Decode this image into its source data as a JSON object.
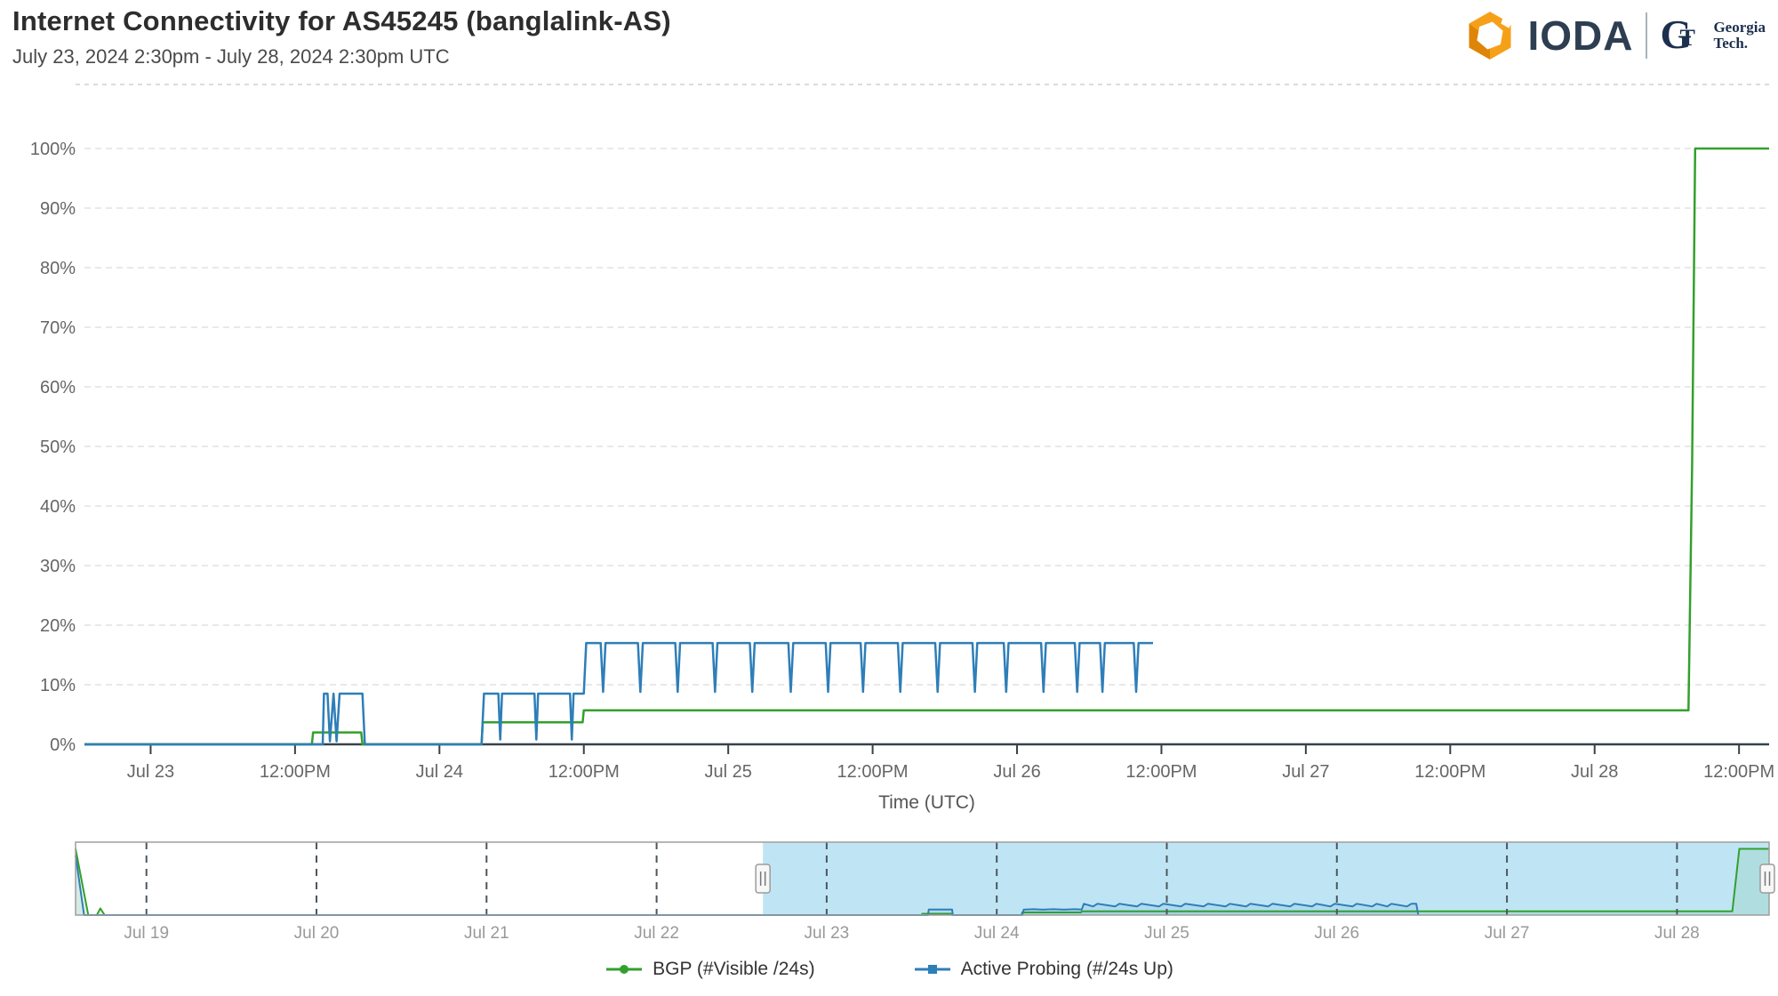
{
  "header": {
    "title": "Internet Connectivity for AS45245 (banglalink-AS)",
    "subtitle": "July 23, 2024 2:30pm - July 28, 2024 2:30pm UTC",
    "brand": {
      "ioda": "IODA",
      "gt_g": "G",
      "gt_t": "T",
      "gt_line1": "Georgia",
      "gt_line2": "Tech."
    }
  },
  "legend": [
    {
      "label": "BGP (#Visible /24s)",
      "color": "#33a02c",
      "marker": "circle"
    },
    {
      "label": "Active Probing (#/24s Up)",
      "color": "#2e7eb8",
      "marker": "square"
    }
  ],
  "colors": {
    "bgp_green": "#33a02c",
    "probing_blue": "#2e7eb8",
    "axis_line": "#37424a",
    "grid_line": "#e2e2e2",
    "tick_label": "#666666",
    "nav_label": "#999999",
    "nav_mask": "#bfe5f4",
    "nav_border": "#9e9e9e",
    "nav_grid": "#4d565e",
    "ioda_orange": "#f6a01a",
    "ioda_orange_dark": "#de8508"
  },
  "chart_data": {
    "type": "line",
    "title": "Internet Connectivity for AS45245 (banglalink-AS)",
    "time_axis_label": "Time (UTC)",
    "time_origin": "hours since Jul 18 2024 00:00 UTC",
    "x_range": [
      114.5,
      254.5
    ],
    "y_axis": {
      "min": 0,
      "max": 100,
      "tick_step": 10,
      "tick_labels": [
        "0%",
        "10%",
        "20%",
        "30%",
        "40%",
        "50%",
        "60%",
        "70%",
        "80%",
        "90%",
        "100%"
      ]
    },
    "x_ticks": [
      {
        "t": 120,
        "label": "Jul 23"
      },
      {
        "t": 132,
        "label": "12:00PM"
      },
      {
        "t": 144,
        "label": "Jul 24"
      },
      {
        "t": 156,
        "label": "12:00PM"
      },
      {
        "t": 168,
        "label": "Jul 25"
      },
      {
        "t": 180,
        "label": "12:00PM"
      },
      {
        "t": 192,
        "label": "Jul 26"
      },
      {
        "t": 204,
        "label": "12:00PM"
      },
      {
        "t": 216,
        "label": "Jul 27"
      },
      {
        "t": 228,
        "label": "12:00PM"
      },
      {
        "t": 240,
        "label": "Jul 28"
      },
      {
        "t": 252,
        "label": "12:00PM"
      }
    ],
    "series": [
      {
        "name": "BGP (#Visible /24s)",
        "color": "#33a02c",
        "points": [
          [
            114.5,
            0
          ],
          [
            133.4,
            0
          ],
          [
            133.5,
            2
          ],
          [
            137.5,
            2
          ],
          [
            137.6,
            0
          ],
          [
            147.5,
            0
          ],
          [
            147.6,
            3.7
          ],
          [
            155.9,
            3.7
          ],
          [
            156.0,
            5.7
          ],
          [
            247.8,
            5.7
          ],
          [
            248.1,
            47
          ],
          [
            248.35,
            100
          ],
          [
            254.5,
            100
          ]
        ]
      },
      {
        "name": "Active Probing (#/24s Up)",
        "color": "#2e7eb8",
        "points": [
          [
            114.5,
            0
          ],
          [
            134.3,
            0
          ],
          [
            134.4,
            8.5
          ],
          [
            134.7,
            8.5
          ],
          [
            134.9,
            0.5
          ],
          [
            135.2,
            8.5
          ],
          [
            135.45,
            0.5
          ],
          [
            135.7,
            8.5
          ],
          [
            137.6,
            8.5
          ],
          [
            137.8,
            0
          ],
          [
            147.5,
            0
          ],
          [
            147.7,
            8.5
          ],
          [
            148.9,
            8.5
          ],
          [
            149.05,
            0.8
          ],
          [
            149.2,
            8.5
          ],
          [
            151.9,
            8.5
          ],
          [
            152.05,
            0.8
          ],
          [
            152.2,
            8.5
          ],
          [
            154.85,
            8.5
          ],
          [
            155.0,
            0.8
          ],
          [
            155.15,
            8.5
          ],
          [
            156.0,
            8.5
          ],
          [
            156.2,
            17
          ],
          [
            157.4,
            17
          ],
          [
            157.6,
            8.8
          ],
          [
            157.8,
            17
          ],
          [
            160.5,
            17
          ],
          [
            160.7,
            8.8
          ],
          [
            160.9,
            17
          ],
          [
            163.6,
            17
          ],
          [
            163.8,
            8.8
          ],
          [
            164.0,
            17
          ],
          [
            166.7,
            17
          ],
          [
            166.9,
            8.8
          ],
          [
            167.1,
            17
          ],
          [
            169.8,
            17
          ],
          [
            170.0,
            8.8
          ],
          [
            170.2,
            17
          ],
          [
            173.0,
            17
          ],
          [
            173.2,
            8.8
          ],
          [
            173.4,
            17
          ],
          [
            176.1,
            17
          ],
          [
            176.3,
            8.8
          ],
          [
            176.5,
            17
          ],
          [
            179.0,
            17
          ],
          [
            179.2,
            8.8
          ],
          [
            179.4,
            17
          ],
          [
            182.1,
            17
          ],
          [
            182.3,
            8.8
          ],
          [
            182.5,
            17
          ],
          [
            185.2,
            17
          ],
          [
            185.4,
            8.8
          ],
          [
            185.6,
            17
          ],
          [
            188.3,
            17
          ],
          [
            188.5,
            8.8
          ],
          [
            188.7,
            17
          ],
          [
            190.9,
            17
          ],
          [
            191.1,
            8.8
          ],
          [
            191.3,
            17
          ],
          [
            194.0,
            17
          ],
          [
            194.2,
            8.8
          ],
          [
            194.4,
            17
          ],
          [
            196.8,
            17
          ],
          [
            197.0,
            8.8
          ],
          [
            197.2,
            17
          ],
          [
            198.9,
            17
          ],
          [
            199.1,
            8.8
          ],
          [
            199.3,
            17
          ],
          [
            201.7,
            17
          ],
          [
            201.9,
            8.8
          ],
          [
            202.1,
            17
          ],
          [
            203.3,
            17
          ]
        ]
      }
    ],
    "navigator": {
      "x_range": [
        14,
        253
      ],
      "y_max": 110,
      "selection": [
        111,
        253
      ],
      "day_ticks": [
        {
          "t": 24,
          "label": "Jul 19"
        },
        {
          "t": 48,
          "label": "Jul 20"
        },
        {
          "t": 72,
          "label": "Jul 21"
        },
        {
          "t": 96,
          "label": "Jul 22"
        },
        {
          "t": 120,
          "label": "Jul 23"
        },
        {
          "t": 144,
          "label": "Jul 24"
        },
        {
          "t": 168,
          "label": "Jul 25"
        },
        {
          "t": 192,
          "label": "Jul 26"
        },
        {
          "t": 216,
          "label": "Jul 27"
        },
        {
          "t": 240,
          "label": "Jul 28"
        }
      ],
      "series": [
        {
          "name": "BGP (#Visible /24s)",
          "color": "#33a02c",
          "points": [
            [
              14,
              100
            ],
            [
              15.8,
              0
            ],
            [
              17.0,
              0
            ],
            [
              17.5,
              10
            ],
            [
              18.1,
              0
            ],
            [
              133.4,
              0
            ],
            [
              133.5,
              2
            ],
            [
              137.6,
              2
            ],
            [
              137.7,
              0
            ],
            [
              147.5,
              0
            ],
            [
              147.6,
              4
            ],
            [
              155.9,
              4
            ],
            [
              156,
              5.7
            ],
            [
              247.8,
              5.7
            ],
            [
              248.8,
              100
            ],
            [
              253,
              100
            ]
          ]
        },
        {
          "name": "Active Probing (#/24s Up)",
          "color": "#2e7eb8",
          "points": [
            [
              14,
              90
            ],
            [
              15.2,
              0
            ],
            [
              134.3,
              0
            ],
            [
              134.4,
              8.5
            ],
            [
              137.7,
              8.5
            ],
            [
              137.8,
              0
            ],
            [
              147.6,
              0
            ],
            [
              147.8,
              8.2
            ],
            [
              149.2,
              8.8
            ],
            [
              150.5,
              8.2
            ],
            [
              152,
              8.8
            ],
            [
              153.5,
              8.2
            ],
            [
              155,
              8.8
            ],
            [
              156,
              8.5
            ],
            [
              156.3,
              17
            ],
            [
              157.6,
              13
            ],
            [
              158.2,
              17
            ],
            [
              160.7,
              13
            ],
            [
              161.3,
              17
            ],
            [
              163.8,
              13
            ],
            [
              164.4,
              17
            ],
            [
              166.9,
              13
            ],
            [
              167.5,
              17
            ],
            [
              170,
              13
            ],
            [
              170.6,
              17
            ],
            [
              173.2,
              13
            ],
            [
              173.8,
              17
            ],
            [
              176.3,
              13
            ],
            [
              176.9,
              17
            ],
            [
              179.2,
              13
            ],
            [
              179.8,
              17
            ],
            [
              182.3,
              13
            ],
            [
              182.9,
              17
            ],
            [
              185.4,
              13
            ],
            [
              186,
              17
            ],
            [
              188.5,
              13
            ],
            [
              189.1,
              17
            ],
            [
              191.1,
              13
            ],
            [
              191.7,
              17
            ],
            [
              194.2,
              13
            ],
            [
              194.8,
              17
            ],
            [
              197,
              13
            ],
            [
              197.6,
              17
            ],
            [
              199.1,
              13
            ],
            [
              199.7,
              17
            ],
            [
              201.9,
              13
            ],
            [
              202.5,
              17
            ],
            [
              203.2,
              17
            ],
            [
              203.5,
              0
            ]
          ]
        }
      ]
    }
  }
}
